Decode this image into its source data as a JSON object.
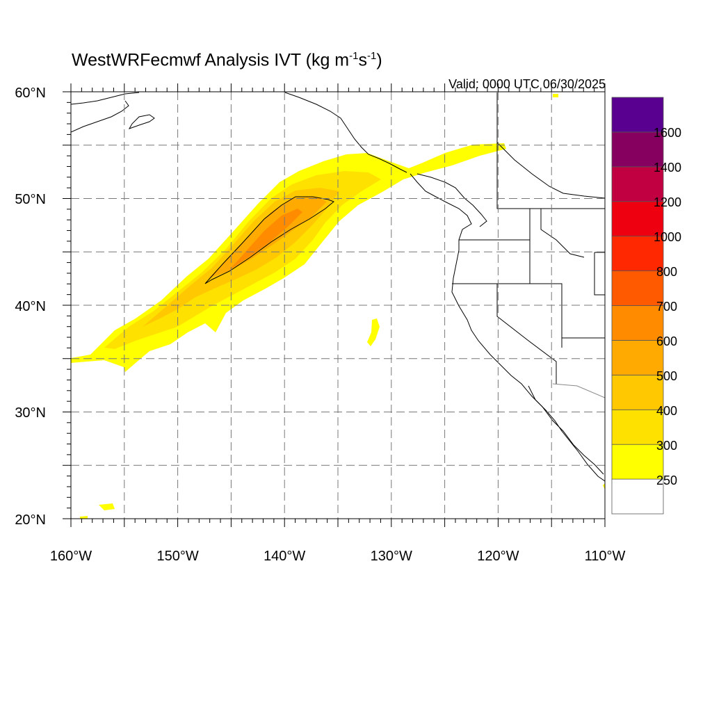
{
  "title": {
    "prefix": "WestWRFecmwf Analysis IVT (kg m",
    "sup1": "-1",
    "mid": "s",
    "sup2": "-1",
    "suffix": ")"
  },
  "valid": "Valid: 0000 UTC 06/30/2025",
  "lat_labels": [
    "20°N",
    "30°N",
    "40°N",
    "50°N",
    "60°N"
  ],
  "lon_labels": [
    "160°W",
    "150°W",
    "140°W",
    "130°W",
    "120°W",
    "110°W"
  ],
  "map_extent": {
    "lon": [
      -160,
      -110
    ],
    "lat": [
      20,
      60
    ]
  },
  "colorbar": {
    "labels": [
      "250",
      "300",
      "400",
      "500",
      "600",
      "700",
      "800",
      "1000",
      "1200",
      "1400",
      "1600"
    ],
    "colors": [
      "#ffffff",
      "#ffff00",
      "#ffe100",
      "#ffc800",
      "#ffaa00",
      "#ff8c00",
      "#ff5a00",
      "#ff2800",
      "#ee0010",
      "#c00040",
      "#860060",
      "#5a0090"
    ]
  }
}
